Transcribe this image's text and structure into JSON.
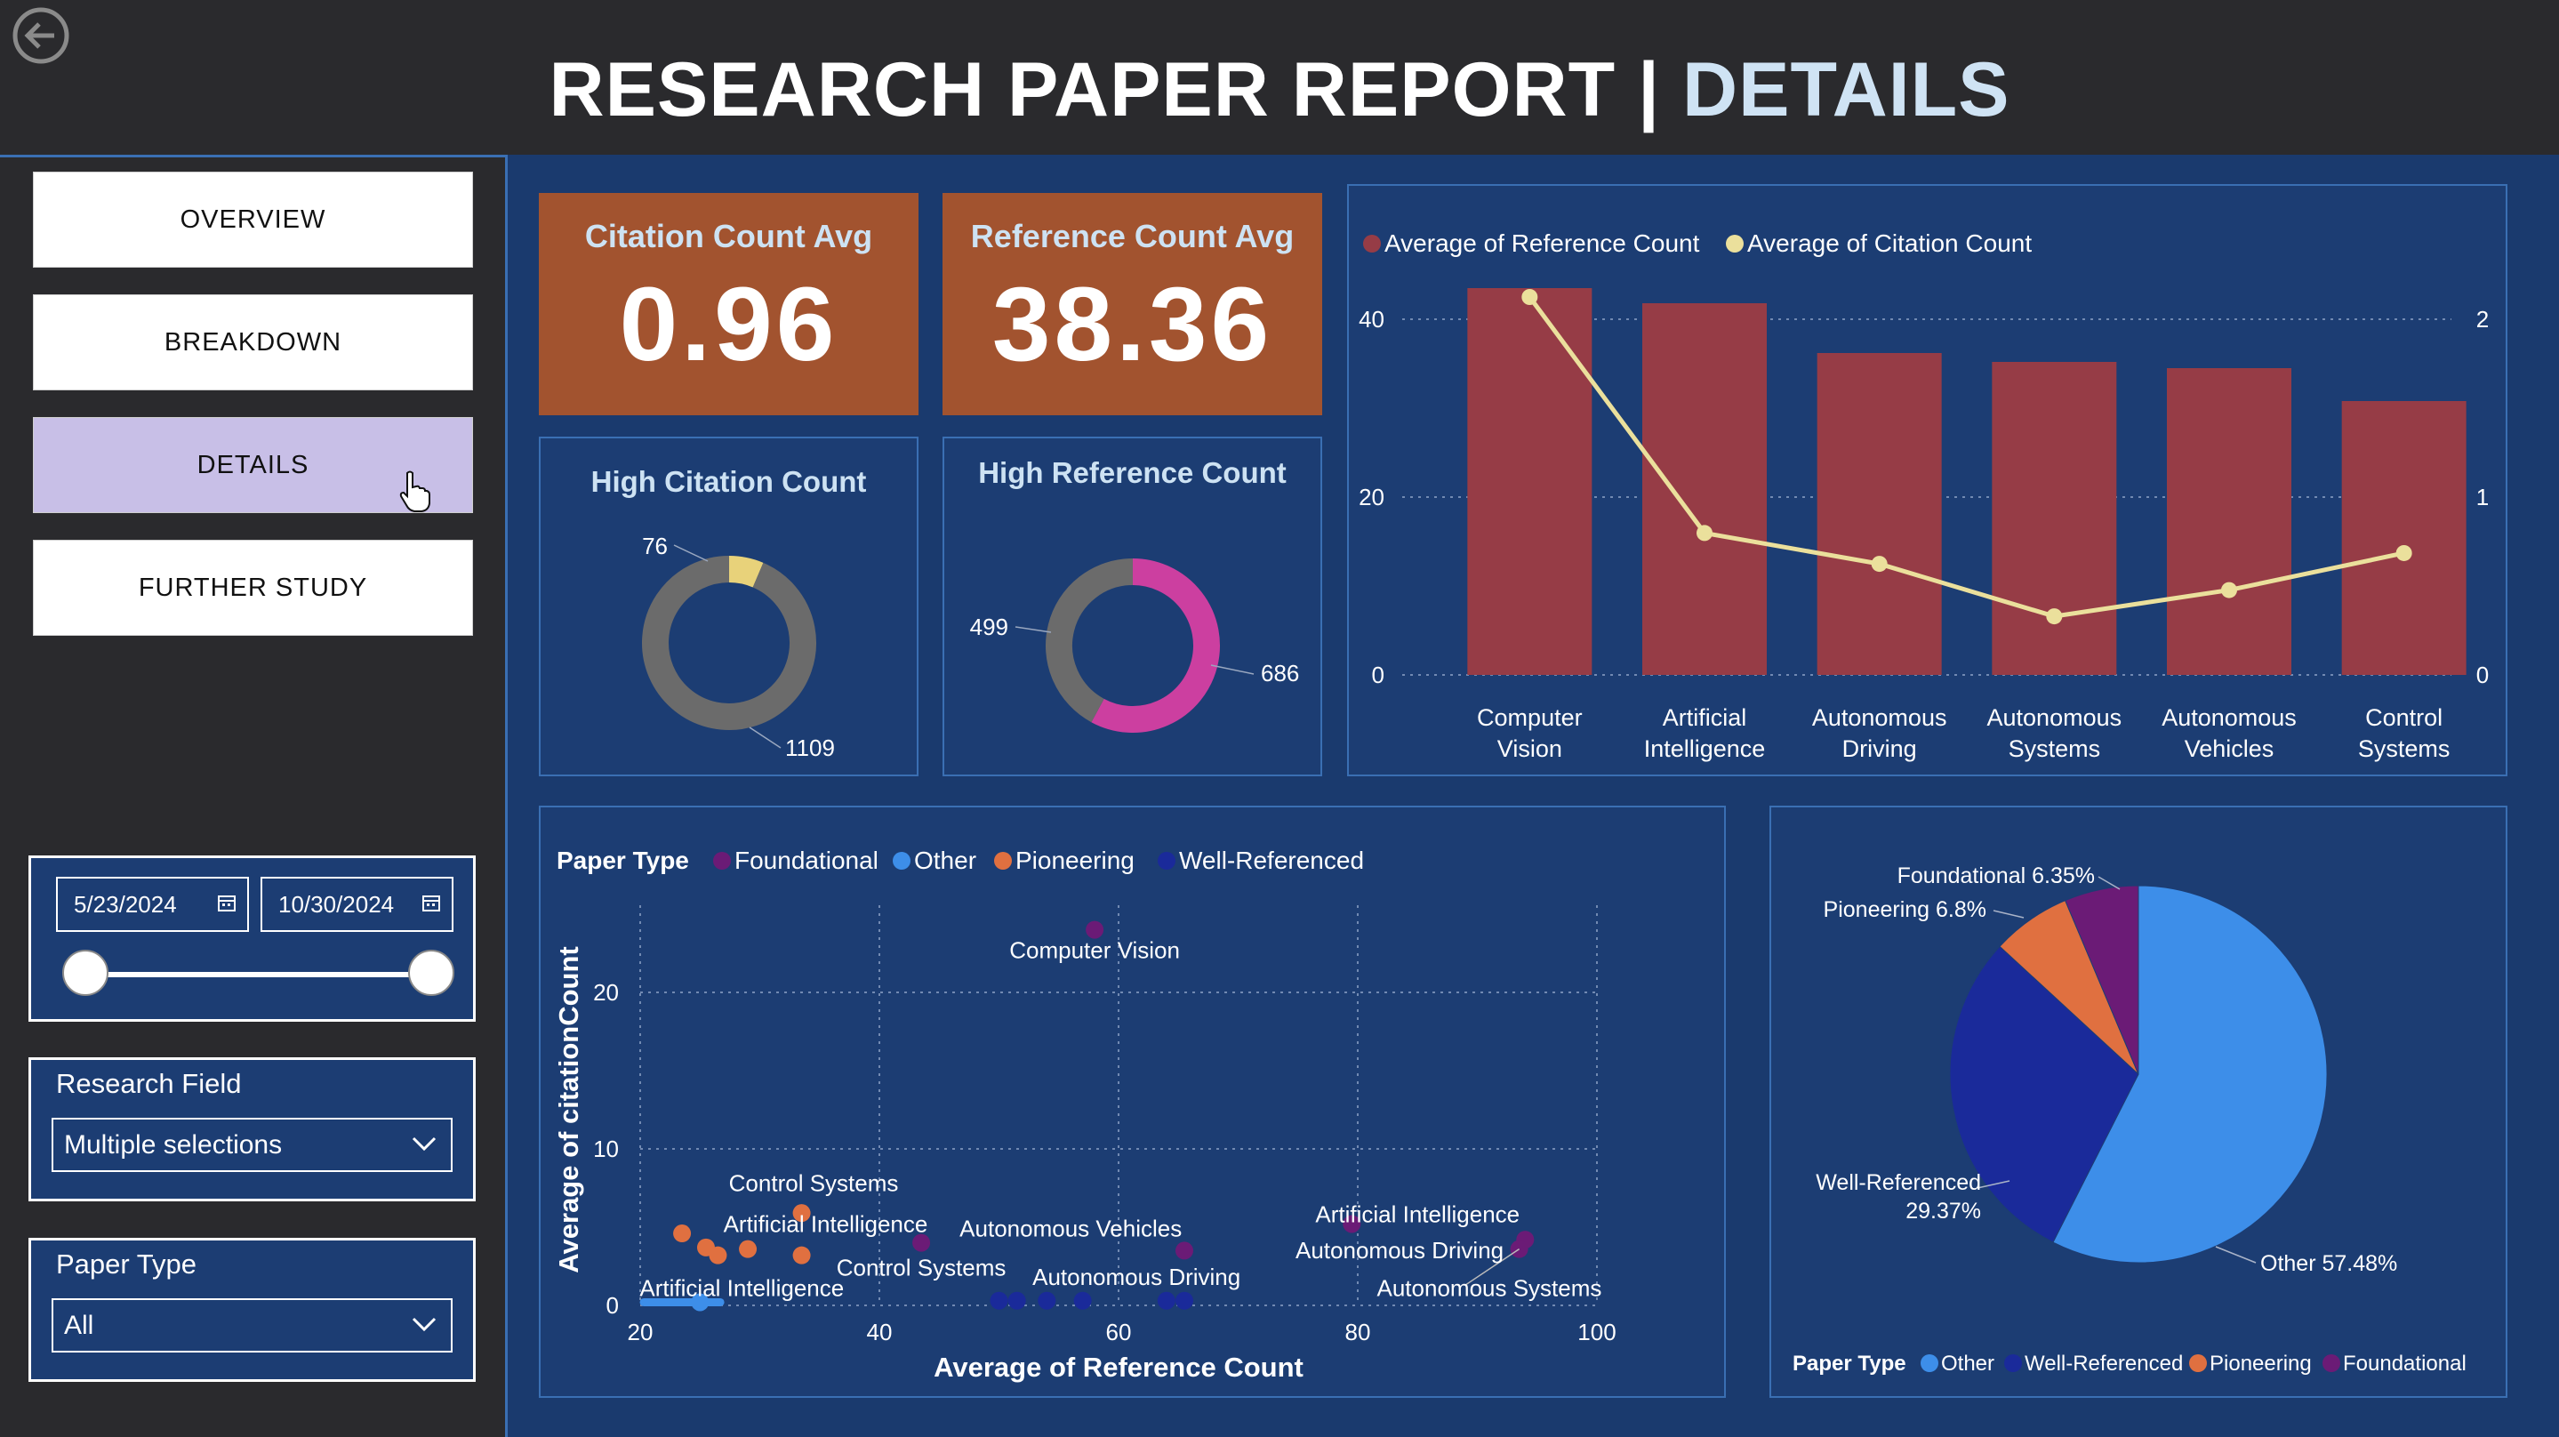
{
  "header": {
    "title_main": "RESEARCH PAPER REPORT | ",
    "title_accent": "DETAILS"
  },
  "nav": {
    "items": [
      {
        "label": "OVERVIEW"
      },
      {
        "label": "BREAKDOWN"
      },
      {
        "label": "DETAILS"
      },
      {
        "label": "FURTHER STUDY"
      }
    ],
    "active": "DETAILS"
  },
  "date_filter": {
    "start": "5/23/2024",
    "end": "10/30/2024"
  },
  "research_field": {
    "title": "Research Field",
    "value": "Multiple selections"
  },
  "paper_type_filter": {
    "title": "Paper Type",
    "value": "All"
  },
  "kpis": [
    {
      "label": "Citation Count Avg",
      "value": "0.96"
    },
    {
      "label": "Reference Count Avg",
      "value": "38.36"
    }
  ],
  "donuts": [
    {
      "title": "High Citation Count",
      "labels": [
        "76",
        "1109"
      ],
      "values": [
        76,
        1109
      ],
      "colors": [
        "#e8d27a",
        "#6b6b6b"
      ]
    },
    {
      "title": "High Reference Count",
      "labels": [
        "686",
        "499"
      ],
      "values": [
        686,
        499
      ],
      "colors": [
        "#cc3fa0",
        "#6b6b6b"
      ]
    }
  ],
  "colors": {
    "bar": "#963c46",
    "line": "#ebe09c",
    "foundational": "#6b1b76",
    "other": "#3d8ee9",
    "pioneering": "#e07040",
    "well_referenced": "#1a2a9a"
  },
  "chart_data": [
    {
      "type": "bar",
      "series": [
        {
          "name": "Average of Reference Count",
          "values": [
            43.5,
            41.8,
            36.2,
            35.2,
            34.5,
            30.8
          ],
          "axis": "left"
        },
        {
          "name": "Average of Citation Count",
          "values": [
            2.45,
            0.92,
            0.72,
            0.38,
            0.55,
            0.79
          ],
          "axis": "right",
          "type": "line"
        }
      ],
      "categories": [
        "Computer Vision",
        "Artificial Intelligence",
        "Autonomous Driving",
        "Autonomous Systems",
        "Autonomous Vehicles",
        "Control Systems"
      ],
      "category_lines": [
        [
          "Computer",
          "Vision"
        ],
        [
          "Artificial",
          "Intelligence"
        ],
        [
          "Autonomous",
          "Driving"
        ],
        [
          "Autonomous",
          "Systems"
        ],
        [
          "Autonomous",
          "Vehicles"
        ],
        [
          "Control",
          "Systems"
        ]
      ],
      "left_ticks": [
        "40",
        "20",
        "0"
      ],
      "right_ticks": [
        "2",
        "1",
        "0"
      ],
      "ylim": [
        0,
        49
      ],
      "y2lim": [
        0,
        2.45
      ]
    },
    {
      "type": "scatter",
      "legend_title": "Paper Type",
      "legend": [
        "Foundational",
        "Other",
        "Pioneering",
        "Well-Referenced"
      ],
      "xlabel": "Average of Reference Count",
      "ylabel": "Average of citationCount",
      "x_ticks": [
        "20",
        "40",
        "60",
        "80",
        "100"
      ],
      "y_ticks": [
        "20",
        "10",
        "0"
      ],
      "xlim": [
        20,
        100
      ],
      "ylim": [
        0,
        25
      ],
      "points": [
        {
          "x": 58,
          "y": 24,
          "type": "foundational"
        },
        {
          "x": 43.5,
          "y": 4,
          "type": "foundational"
        },
        {
          "x": 65.5,
          "y": 3.5,
          "type": "foundational"
        },
        {
          "x": 79.5,
          "y": 5.2,
          "type": "foundational"
        },
        {
          "x": 94,
          "y": 4.2,
          "type": "foundational"
        },
        {
          "x": 93.5,
          "y": 3.6,
          "type": "foundational"
        },
        {
          "x": 23.5,
          "y": 4.6,
          "type": "pioneering"
        },
        {
          "x": 25.5,
          "y": 3.7,
          "type": "pioneering"
        },
        {
          "x": 26.5,
          "y": 3.2,
          "type": "pioneering"
        },
        {
          "x": 29,
          "y": 3.6,
          "type": "pioneering"
        },
        {
          "x": 33.5,
          "y": 5.9,
          "type": "pioneering"
        },
        {
          "x": 33.5,
          "y": 3.2,
          "type": "pioneering"
        },
        {
          "x": 25,
          "y": 0.2,
          "type": "other"
        },
        {
          "x": 50,
          "y": 0.3,
          "type": "well_referenced"
        },
        {
          "x": 51.5,
          "y": 0.3,
          "type": "well_referenced"
        },
        {
          "x": 54,
          "y": 0.3,
          "type": "well_referenced"
        },
        {
          "x": 57,
          "y": 0.3,
          "type": "well_referenced"
        },
        {
          "x": 64,
          "y": 0.3,
          "type": "well_referenced"
        },
        {
          "x": 65.5,
          "y": 0.3,
          "type": "well_referenced"
        }
      ],
      "annotations": [
        {
          "text": "Computer Vision",
          "x": 58,
          "y": 22.2
        },
        {
          "text": "Control Systems",
          "x": 34.5,
          "y": 7.3
        },
        {
          "text": "Artificial Intelligence",
          "x": 35.5,
          "y": 4.7
        },
        {
          "text": "Autonomous Vehicles",
          "x": 56,
          "y": 4.4
        },
        {
          "text": "Control Systems",
          "x": 43.5,
          "y": 1.9
        },
        {
          "text": "Artificial Intelligence",
          "x": 28.5,
          "y": 0.6
        },
        {
          "text": "Autonomous Driving",
          "x": 61.5,
          "y": 1.3
        },
        {
          "text": "Artificial Intelligence",
          "x": 85,
          "y": 5.3
        },
        {
          "text": "Autonomous Driving",
          "x": 83.5,
          "y": 3.0
        },
        {
          "text": "Autonomous Systems",
          "x": 91,
          "y": 0.6
        }
      ]
    },
    {
      "type": "pie",
      "legend_title": "Paper Type",
      "slices": [
        {
          "name": "Other",
          "value": 57.48,
          "label": "Other 57.48%",
          "color_key": "other"
        },
        {
          "name": "Well-Referenced",
          "value": 29.37,
          "label": "Well-Referenced 29.37%",
          "color_key": "well_referenced"
        },
        {
          "name": "Pioneering",
          "value": 6.8,
          "label": "Pioneering 6.8%",
          "color_key": "pioneering"
        },
        {
          "name": "Foundational",
          "value": 6.35,
          "label": "Foundational 6.35%",
          "color_key": "foundational"
        }
      ],
      "legend": [
        "Other",
        "Well-Referenced",
        "Pioneering",
        "Foundational"
      ]
    }
  ]
}
